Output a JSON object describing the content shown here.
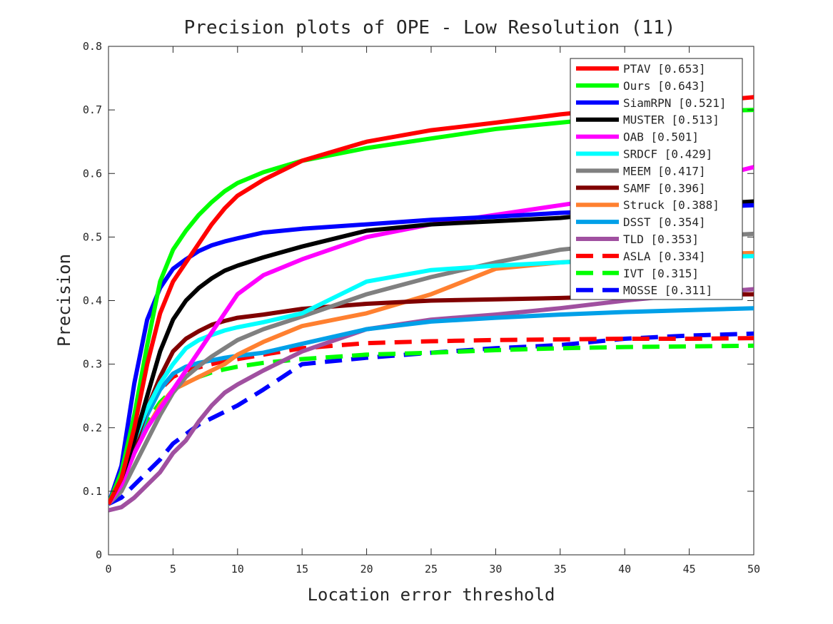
{
  "chart_data": {
    "type": "line",
    "title": "Precision plots of OPE - Low Resolution (11)",
    "xlabel": "Location error threshold",
    "ylabel": "Precision",
    "xlim": [
      0,
      50
    ],
    "ylim": [
      0,
      0.8
    ],
    "x_ticks": [
      "0",
      "5",
      "10",
      "15",
      "20",
      "25",
      "30",
      "35",
      "40",
      "45",
      "50"
    ],
    "y_ticks": [
      "0",
      "0.1",
      "0.2",
      "0.3",
      "0.4",
      "0.5",
      "0.6",
      "0.7",
      "0.8"
    ],
    "grid": false,
    "legend_position": "top-right",
    "x": [
      0,
      1,
      2,
      3,
      4,
      5,
      6,
      7,
      8,
      9,
      10,
      12,
      15,
      20,
      25,
      30,
      35,
      40,
      45,
      50
    ],
    "series": [
      {
        "name": "PTAV [0.653]",
        "color": "#ff0000",
        "dash": "solid",
        "values": [
          0.08,
          0.12,
          0.2,
          0.3,
          0.38,
          0.43,
          0.46,
          0.49,
          0.52,
          0.545,
          0.565,
          0.59,
          0.62,
          0.65,
          0.668,
          0.68,
          0.693,
          0.703,
          0.711,
          0.72
        ]
      },
      {
        "name": "Ours [0.643]",
        "color": "#00ff00",
        "dash": "solid",
        "values": [
          0.08,
          0.13,
          0.22,
          0.33,
          0.43,
          0.48,
          0.51,
          0.535,
          0.555,
          0.572,
          0.585,
          0.602,
          0.62,
          0.64,
          0.655,
          0.67,
          0.68,
          0.69,
          0.697,
          0.7
        ]
      },
      {
        "name": "SiamRPN [0.521]",
        "color": "#0000ff",
        "dash": "solid",
        "values": [
          0.08,
          0.14,
          0.27,
          0.37,
          0.42,
          0.45,
          0.465,
          0.478,
          0.487,
          0.493,
          0.498,
          0.507,
          0.513,
          0.52,
          0.527,
          0.532,
          0.538,
          0.542,
          0.546,
          0.55
        ]
      },
      {
        "name": "MUSTER [0.513]",
        "color": "#000000",
        "dash": "solid",
        "values": [
          0.08,
          0.12,
          0.18,
          0.25,
          0.32,
          0.37,
          0.4,
          0.42,
          0.435,
          0.447,
          0.455,
          0.468,
          0.485,
          0.51,
          0.52,
          0.525,
          0.53,
          0.54,
          0.55,
          0.556
        ]
      },
      {
        "name": "OAB [0.501]",
        "color": "#ff00ff",
        "dash": "solid",
        "values": [
          0.08,
          0.11,
          0.16,
          0.2,
          0.23,
          0.26,
          0.29,
          0.32,
          0.35,
          0.38,
          0.41,
          0.44,
          0.465,
          0.5,
          0.52,
          0.535,
          0.55,
          0.565,
          0.585,
          0.61
        ]
      },
      {
        "name": "SRDCF [0.429]",
        "color": "#00ffff",
        "dash": "solid",
        "values": [
          0.08,
          0.12,
          0.18,
          0.23,
          0.27,
          0.3,
          0.325,
          0.338,
          0.346,
          0.353,
          0.358,
          0.366,
          0.38,
          0.43,
          0.448,
          0.455,
          0.46,
          0.465,
          0.468,
          0.47
        ]
      },
      {
        "name": "MEEM [0.417]",
        "color": "#808080",
        "dash": "solid",
        "values": [
          0.08,
          0.1,
          0.14,
          0.18,
          0.22,
          0.255,
          0.28,
          0.297,
          0.312,
          0.325,
          0.338,
          0.355,
          0.375,
          0.41,
          0.437,
          0.46,
          0.48,
          0.49,
          0.5,
          0.505
        ]
      },
      {
        "name": "SAMF [0.396]",
        "color": "#800000",
        "dash": "solid",
        "values": [
          0.08,
          0.11,
          0.17,
          0.23,
          0.28,
          0.32,
          0.34,
          0.352,
          0.362,
          0.368,
          0.373,
          0.378,
          0.387,
          0.395,
          0.4,
          0.402,
          0.404,
          0.407,
          0.409,
          0.41
        ]
      },
      {
        "name": "Struck [0.388]",
        "color": "#ff8030",
        "dash": "solid",
        "values": [
          0.08,
          0.11,
          0.16,
          0.2,
          0.235,
          0.26,
          0.27,
          0.28,
          0.29,
          0.3,
          0.315,
          0.335,
          0.36,
          0.38,
          0.41,
          0.45,
          0.46,
          0.467,
          0.472,
          0.475
        ]
      },
      {
        "name": "DSST [0.354]",
        "color": "#00a0e8",
        "dash": "solid",
        "values": [
          0.08,
          0.11,
          0.17,
          0.22,
          0.26,
          0.285,
          0.296,
          0.302,
          0.306,
          0.31,
          0.313,
          0.318,
          0.332,
          0.355,
          0.367,
          0.373,
          0.378,
          0.382,
          0.385,
          0.388
        ]
      },
      {
        "name": "TLD [0.353]",
        "color": "#a050a0",
        "dash": "solid",
        "values": [
          0.07,
          0.075,
          0.09,
          0.11,
          0.13,
          0.16,
          0.18,
          0.21,
          0.235,
          0.255,
          0.268,
          0.29,
          0.32,
          0.355,
          0.37,
          0.378,
          0.388,
          0.4,
          0.41,
          0.418
        ]
      },
      {
        "name": "ASLA [0.334]",
        "color": "#ff0000",
        "dash": "dashed",
        "values": [
          0.08,
          0.12,
          0.18,
          0.23,
          0.26,
          0.28,
          0.29,
          0.295,
          0.3,
          0.305,
          0.308,
          0.315,
          0.325,
          0.333,
          0.336,
          0.338,
          0.339,
          0.34,
          0.34,
          0.341
        ]
      },
      {
        "name": "IVT [0.315]",
        "color": "#00ff00",
        "dash": "dashed",
        "values": [
          0.08,
          0.11,
          0.17,
          0.21,
          0.24,
          0.26,
          0.27,
          0.28,
          0.287,
          0.292,
          0.296,
          0.302,
          0.308,
          0.315,
          0.318,
          0.322,
          0.325,
          0.327,
          0.328,
          0.329
        ]
      },
      {
        "name": "MOSSE [0.311]",
        "color": "#0000ff",
        "dash": "dashed",
        "values": [
          0.08,
          0.09,
          0.11,
          0.13,
          0.15,
          0.175,
          0.19,
          0.205,
          0.215,
          0.225,
          0.235,
          0.26,
          0.3,
          0.31,
          0.318,
          0.325,
          0.33,
          0.34,
          0.345,
          0.348
        ]
      }
    ]
  }
}
